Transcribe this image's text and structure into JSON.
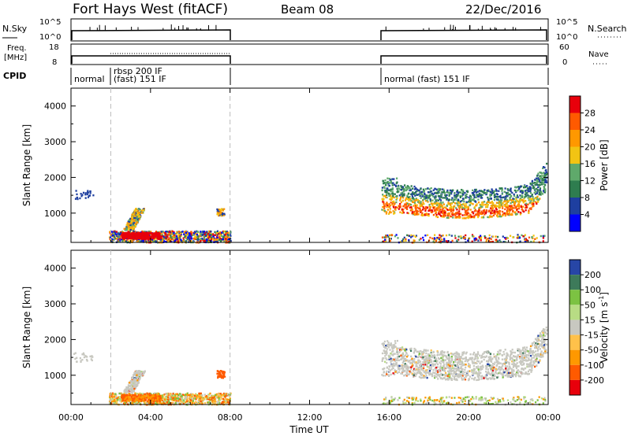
{
  "header": {
    "title": "Fort Hays West (fitACF)",
    "beam": "Beam 08",
    "date": "22/Dec/2016"
  },
  "strips": {
    "nsky_label": "N.Sky",
    "nsky_ticks": [
      "10^5",
      "10^0"
    ],
    "nsearch_label": "N.Search",
    "nsearch_ticks": [
      "10^5",
      "10^0"
    ],
    "freq_label": "Freq.",
    "freq_unit": "[MHz]",
    "freq_ticks": [
      "18",
      "8"
    ],
    "nave_label": "Nave",
    "nave_ticks": [
      "60",
      "0"
    ],
    "cpid_label": "CPID",
    "cpid_segments": [
      {
        "label": "normal"
      },
      {
        "label": "rbsp 200 IF"
      },
      {
        "label": "(fast) 151 IF"
      },
      {
        "label": "normal (fast) 151 IF"
      }
    ]
  },
  "chart_data": [
    {
      "type": "heatmap",
      "name": "power",
      "ylabel": "Slant Range [km]",
      "ylim": [
        180,
        4500
      ],
      "yticks": [
        "4000",
        "3000",
        "2000",
        "1000"
      ],
      "xlim": [
        0,
        24
      ],
      "colorbar": {
        "label": "Power [dB]",
        "ticks": [
          "28",
          "24",
          "20",
          "16",
          "12",
          "8",
          "4"
        ],
        "colors": [
          "#e8000b",
          "#ff5a00",
          "#ff9800",
          "#f2c413",
          "#5fa96b",
          "#2e7d4f",
          "#1e3fa0",
          "#0000ff"
        ]
      },
      "echo_regions": [
        {
          "t": [
            1.9,
            8.0
          ],
          "r": [
            200,
            520
          ],
          "level": "mixed 4-28 dB"
        },
        {
          "t": [
            2.5,
            4.5
          ],
          "r": [
            300,
            480
          ],
          "level": "28 dB"
        },
        {
          "t": [
            2.6,
            3.6
          ],
          "r": [
            550,
            1150
          ],
          "level": "12-24 dB"
        },
        {
          "t": [
            7.3,
            7.7
          ],
          "r": [
            950,
            1150
          ],
          "level": "16-24 dB"
        },
        {
          "t": [
            15.6,
            23.9
          ],
          "r": [
            900,
            2200
          ],
          "level": "4-28 dB"
        },
        {
          "t": [
            16.0,
            22.9
          ],
          "r": [
            1000,
            1450
          ],
          "level": "24-28 dB"
        }
      ]
    },
    {
      "type": "heatmap",
      "name": "velocity",
      "ylabel": "Slant Range [km]",
      "ylim": [
        180,
        4500
      ],
      "yticks": [
        "4000",
        "3000",
        "2000",
        "1000"
      ],
      "xlim": [
        0,
        24
      ],
      "xlabel": "Time UT",
      "xticks": [
        "00:00",
        "04:00",
        "08:00",
        "12:00",
        "16:00",
        "20:00",
        "00:00"
      ],
      "colorbar": {
        "label": "Velocity [m s",
        "label_sup": "-1",
        "label_end": "]",
        "ticks": [
          "200",
          "100",
          "50",
          "15",
          "-15",
          "-50",
          "-100",
          "-200"
        ],
        "colors": [
          "#2746a6",
          "#3d7a5a",
          "#7cc242",
          "#b8dc84",
          "#c8c8c0",
          "#ffc14a",
          "#ff9800",
          "#ff5a00",
          "#e8000b"
        ]
      },
      "echo_regions": [
        {
          "t": [
            1.9,
            8.0
          ],
          "r": [
            200,
            520
          ],
          "level": "-100 to 50 m/s"
        },
        {
          "t": [
            2.6,
            3.6
          ],
          "r": [
            550,
            1150
          ],
          "level": "-15 to 15 m/s"
        },
        {
          "t": [
            7.3,
            7.7
          ],
          "r": [
            950,
            1150
          ],
          "level": "-100 m/s"
        },
        {
          "t": [
            15.6,
            23.9
          ],
          "r": [
            900,
            2200
          ],
          "level": "-15 to 15 m/s"
        },
        {
          "t": [
            15.6,
            23.9
          ],
          "r": [
            200,
            420
          ],
          "level": "15 to 100 m/s"
        }
      ]
    }
  ]
}
